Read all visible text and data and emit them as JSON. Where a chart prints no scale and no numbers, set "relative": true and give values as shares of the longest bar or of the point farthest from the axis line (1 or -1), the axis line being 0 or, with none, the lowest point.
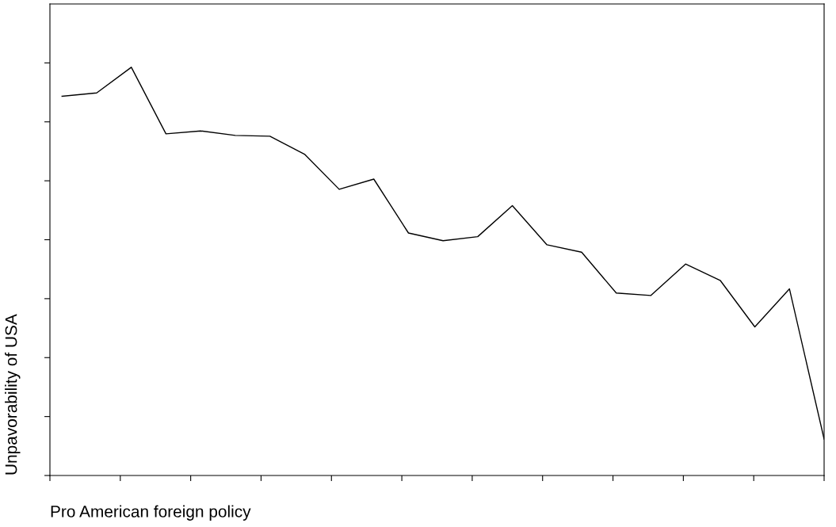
{
  "chart_data": {
    "type": "line",
    "relative": true,
    "xlabel": "Pro American foreign policy",
    "ylabel": "Unpavorability of USA",
    "tick_labels": false,
    "grid": false,
    "marker": "none",
    "line_style": "solid",
    "categories": [
      null,
      null,
      null,
      null,
      null,
      null,
      null,
      null,
      null,
      null,
      null,
      null,
      null,
      null,
      null,
      null,
      null,
      null,
      null,
      null,
      null,
      null,
      null
    ],
    "series": [
      {
        "color": "#000000",
        "values": [
          0.929,
          0.937,
          1,
          0.837,
          0.844,
          0.833,
          0.831,
          0.787,
          0.701,
          0.726,
          0.594,
          0.575,
          0.585,
          0.661,
          0.565,
          0.547,
          0.447,
          0.441,
          0.518,
          0.478,
          0.364,
          0.457,
          0.089
        ]
      }
    ]
  }
}
